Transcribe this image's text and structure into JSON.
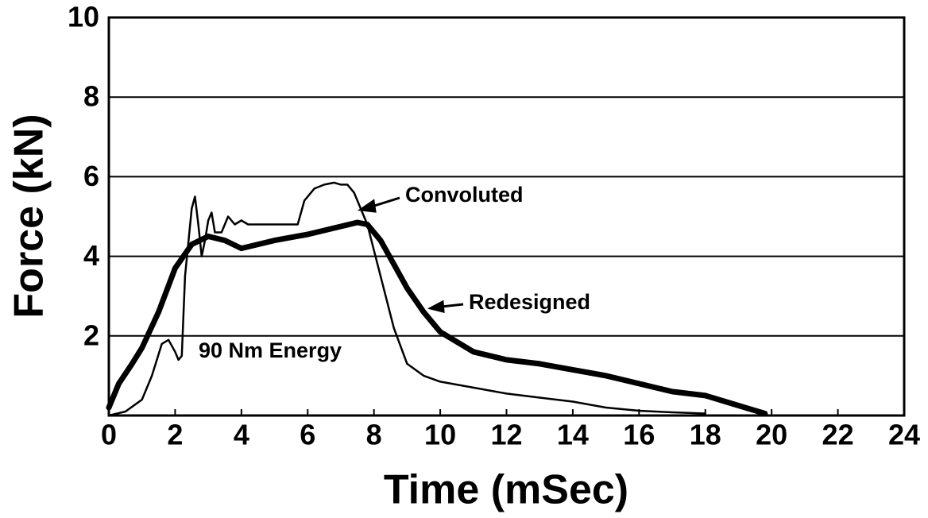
{
  "chart_data": {
    "type": "line",
    "xlabel": "Time (mSec)",
    "ylabel": "Force (kN)",
    "annotations": [
      "90 Nm Energy"
    ],
    "xlim": [
      0,
      24
    ],
    "xticks": [
      0,
      2,
      4,
      6,
      8,
      10,
      12,
      14,
      16,
      18,
      20,
      22,
      24
    ],
    "ylim": [
      0,
      10
    ],
    "yticks": [
      2,
      4,
      6,
      8,
      10
    ],
    "grid": true,
    "series": [
      {
        "name": "Convoluted",
        "color": "#000000",
        "x": [
          0,
          0.5,
          1,
          1.3,
          1.6,
          1.8,
          2.0,
          2.1,
          2.2,
          2.3,
          2.5,
          2.6,
          2.7,
          2.8,
          2.9,
          3.0,
          3.1,
          3.2,
          3.4,
          3.6,
          3.8,
          4.0,
          4.2,
          5,
          5.7,
          5.9,
          6.2,
          6.5,
          6.8,
          7.0,
          7.2,
          7.4,
          7.8,
          8.2,
          8.6,
          9.0,
          9.5,
          10,
          11,
          12,
          13,
          14,
          15,
          16,
          17,
          18
        ],
        "values": [
          0,
          0.1,
          0.4,
          1.0,
          1.8,
          1.9,
          1.6,
          1.4,
          1.5,
          3.5,
          5.2,
          5.5,
          4.8,
          4.0,
          4.4,
          4.9,
          5.1,
          4.6,
          4.6,
          5.0,
          4.8,
          4.9,
          4.8,
          4.8,
          4.8,
          5.4,
          5.7,
          5.8,
          5.85,
          5.8,
          5.8,
          5.6,
          4.8,
          3.5,
          2.2,
          1.3,
          1.0,
          0.85,
          0.7,
          0.55,
          0.45,
          0.35,
          0.2,
          0.12,
          0.08,
          0.05
        ]
      },
      {
        "name": "Redesigned",
        "color": "#000000",
        "x": [
          0,
          0.3,
          0.7,
          1,
          1.5,
          2,
          2.5,
          3,
          3.5,
          4,
          4.5,
          5,
          6,
          7,
          7.5,
          7.8,
          8.2,
          8.6,
          9,
          9.5,
          10,
          11,
          12,
          13,
          14,
          15,
          16,
          17,
          18,
          19,
          19.8
        ],
        "values": [
          0.2,
          0.8,
          1.3,
          1.7,
          2.6,
          3.7,
          4.3,
          4.5,
          4.4,
          4.2,
          4.3,
          4.4,
          4.55,
          4.75,
          4.85,
          4.8,
          4.4,
          3.8,
          3.2,
          2.6,
          2.1,
          1.6,
          1.4,
          1.3,
          1.15,
          1.0,
          0.8,
          0.6,
          0.5,
          0.25,
          0.05
        ]
      }
    ]
  }
}
